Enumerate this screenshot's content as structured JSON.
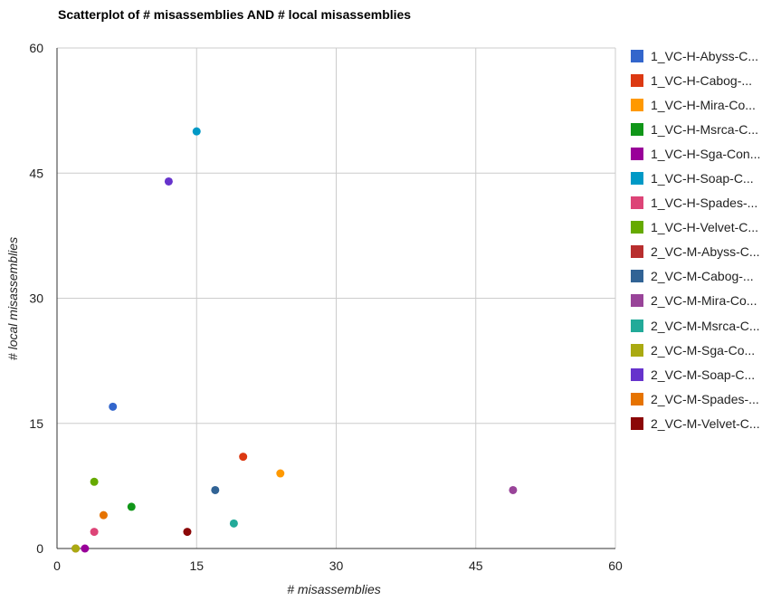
{
  "chart_data": {
    "type": "scatter",
    "title": "Scatterplot of # misassemblies AND # local misassemblies",
    "xlabel": "# misassemblies",
    "ylabel": "# local misassemblies",
    "xlim": [
      0,
      60
    ],
    "ylim": [
      0,
      60
    ],
    "xticks": [
      "0",
      "15",
      "30",
      "45",
      "60"
    ],
    "yticks": [
      "0",
      "15",
      "30",
      "45",
      "60"
    ],
    "grid": true,
    "legend_position": "right",
    "series": [
      {
        "name": "1_VC-H-Abyss-C...",
        "color": "#3366cc",
        "points": [
          [
            6,
            17
          ]
        ]
      },
      {
        "name": "1_VC-H-Cabog-...",
        "color": "#dc3912",
        "points": [
          [
            20,
            11
          ]
        ]
      },
      {
        "name": "1_VC-H-Mira-Co...",
        "color": "#ff9900",
        "points": [
          [
            24,
            9
          ]
        ]
      },
      {
        "name": "1_VC-H-Msrca-C...",
        "color": "#109618",
        "points": [
          [
            8,
            5
          ]
        ]
      },
      {
        "name": "1_VC-H-Sga-Con...",
        "color": "#990099",
        "points": [
          [
            3,
            0
          ]
        ]
      },
      {
        "name": "1_VC-H-Soap-C...",
        "color": "#0099c6",
        "points": [
          [
            15,
            50
          ]
        ]
      },
      {
        "name": "1_VC-H-Spades-...",
        "color": "#dd4477",
        "points": [
          [
            4,
            2
          ]
        ]
      },
      {
        "name": "1_VC-H-Velvet-C...",
        "color": "#66aa00",
        "points": [
          [
            4,
            8
          ]
        ]
      },
      {
        "name": "2_VC-M-Abyss-C...",
        "color": "#b82e2e",
        "points": [
          [
            2,
            0
          ]
        ]
      },
      {
        "name": "2_VC-M-Cabog-...",
        "color": "#316395",
        "points": [
          [
            17,
            7
          ]
        ]
      },
      {
        "name": "2_VC-M-Mira-Co...",
        "color": "#994499",
        "points": [
          [
            49,
            7
          ]
        ]
      },
      {
        "name": "2_VC-M-Msrca-C...",
        "color": "#22aa99",
        "points": [
          [
            19,
            3
          ]
        ]
      },
      {
        "name": "2_VC-M-Sga-Co...",
        "color": "#aaaa11",
        "points": [
          [
            2,
            0
          ]
        ]
      },
      {
        "name": "2_VC-M-Soap-C...",
        "color": "#6633cc",
        "points": [
          [
            12,
            44
          ]
        ]
      },
      {
        "name": "2_VC-M-Spades-...",
        "color": "#e67300",
        "points": [
          [
            5,
            4
          ]
        ]
      },
      {
        "name": "2_VC-M-Velvet-C...",
        "color": "#8b0707",
        "points": [
          [
            14,
            2
          ]
        ]
      }
    ]
  }
}
